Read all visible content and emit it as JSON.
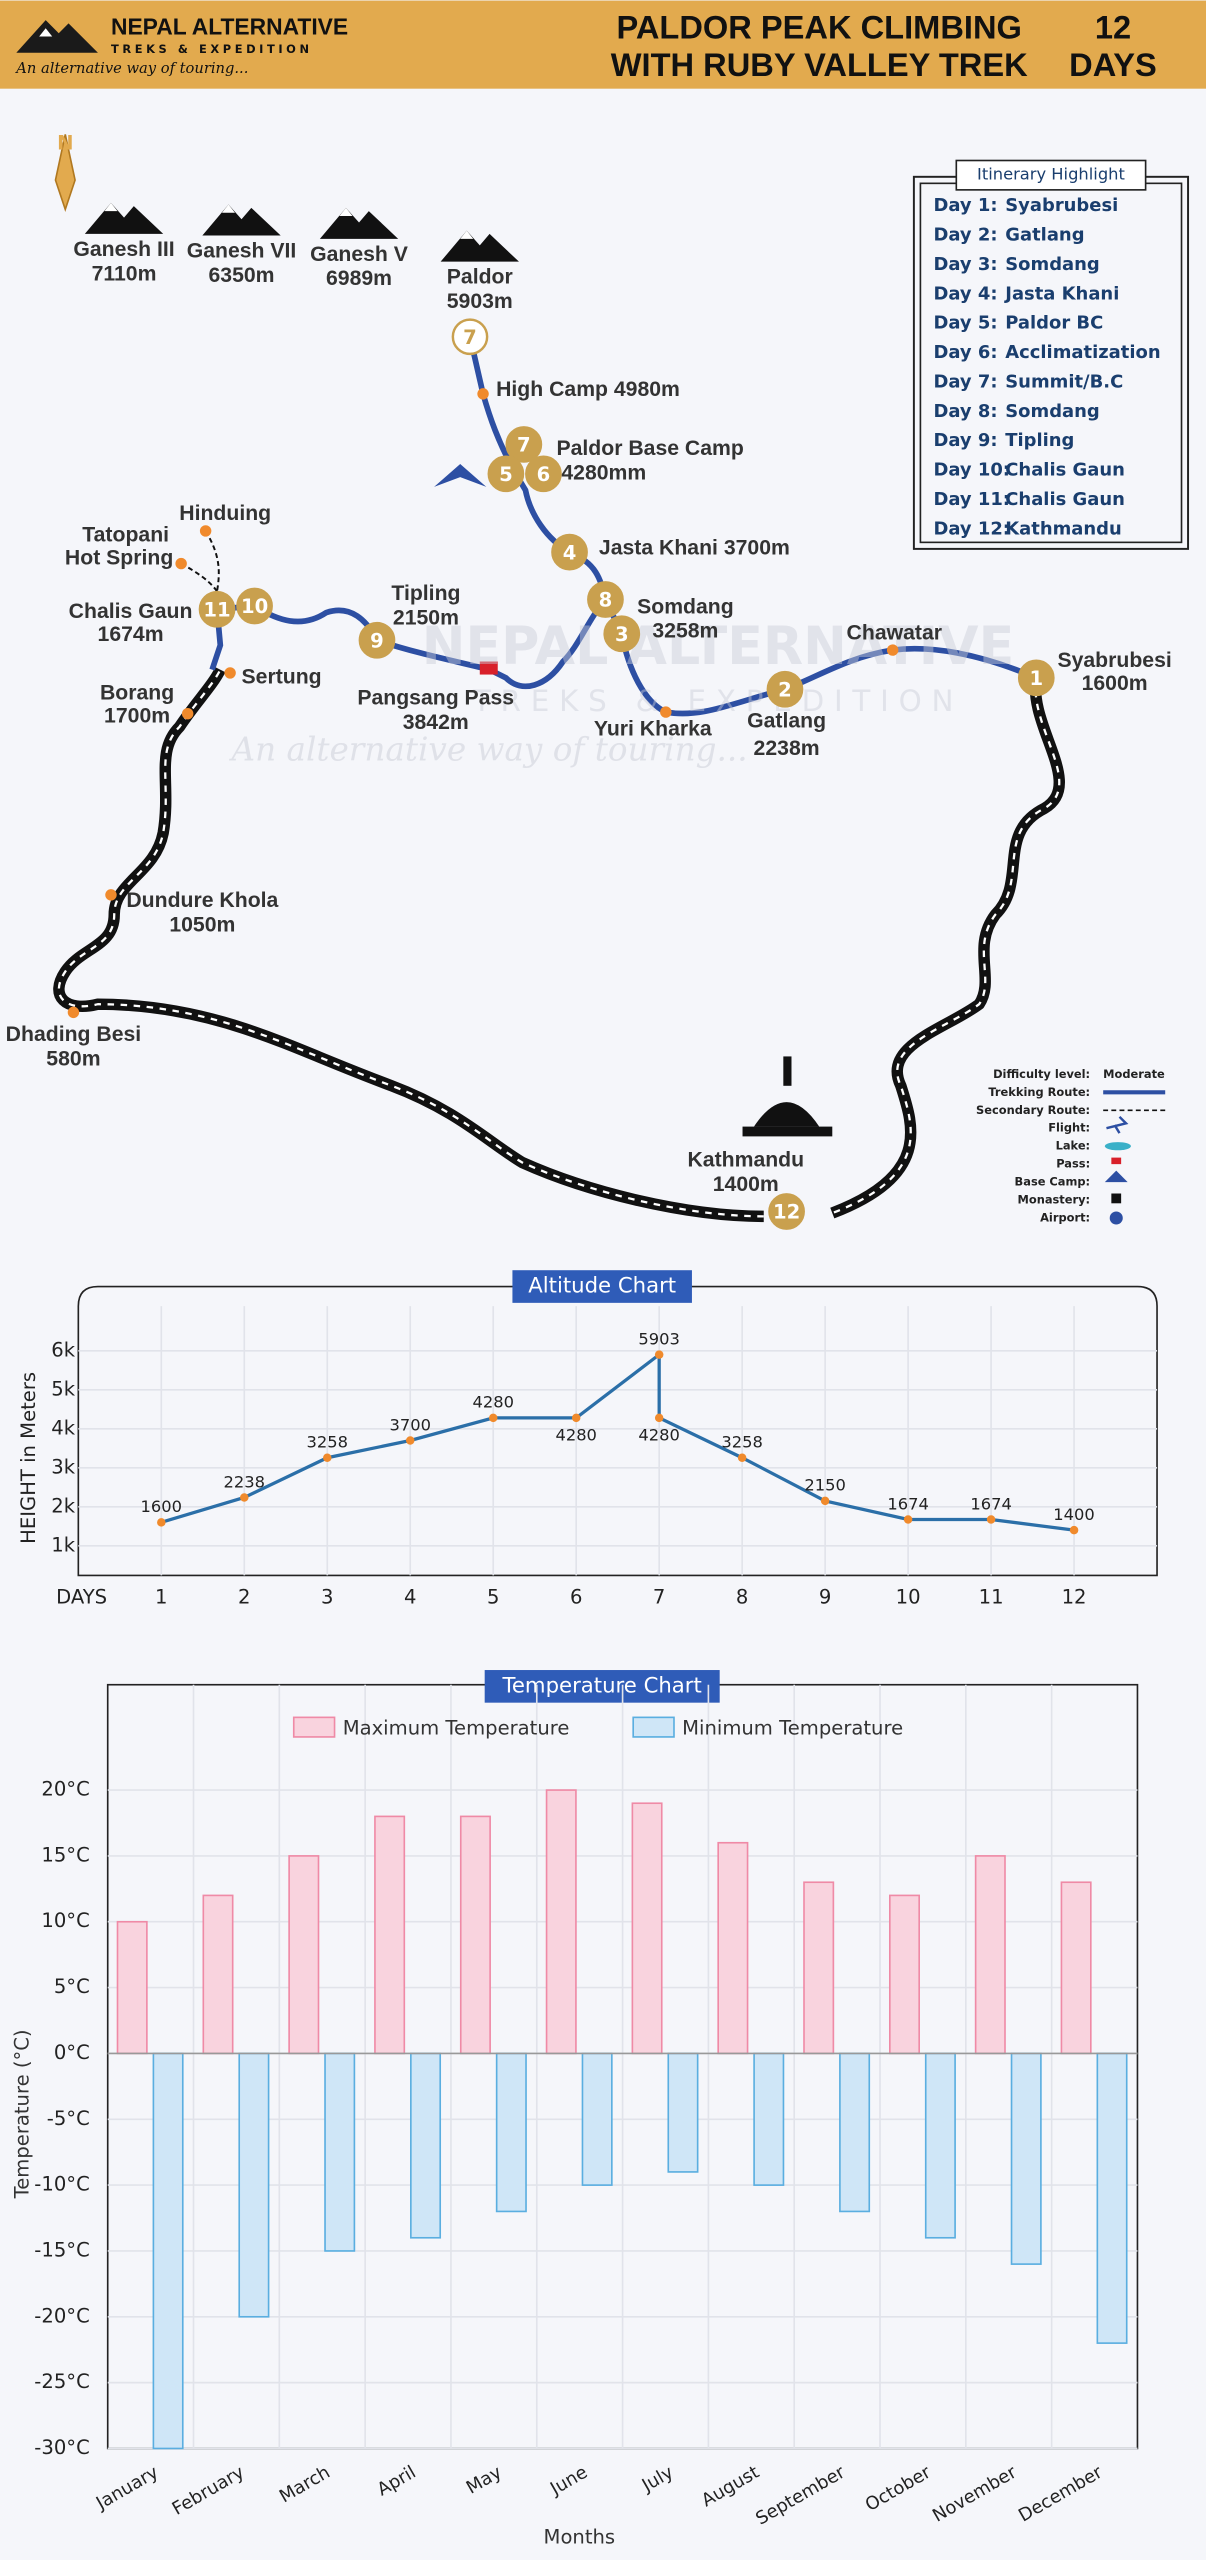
{
  "header": {
    "brand": "NEPAL ALTERNATIVE",
    "brand_sub": "TREKS & EXPEDITION",
    "tagline": "An alternative way of touring...",
    "title_lines": [
      "PALDOR PEAK CLIMBING",
      "WITH RUBY VALLEY TREK"
    ],
    "days_number": "12",
    "days_word": "DAYS"
  },
  "map": {
    "compass": "N",
    "peaks": [
      {
        "name": "Ganesh III",
        "height": "7110m"
      },
      {
        "name": "Ganesh VII",
        "height": "6350m"
      },
      {
        "name": "Ganesh V",
        "height": "6989m"
      },
      {
        "name": "Paldor",
        "height": "5903m"
      }
    ],
    "places": [
      {
        "lines": [
          "High Camp 4980m"
        ]
      },
      {
        "lines": [
          "Paldor Base Camp",
          "4280mm"
        ]
      },
      {
        "lines": [
          "Jasta Khani 3700m"
        ]
      },
      {
        "lines": [
          "Somdang",
          "3258m"
        ]
      },
      {
        "lines": [
          "Tipling",
          "2150m"
        ]
      },
      {
        "lines": [
          "Pangsang Pass",
          "3842m"
        ]
      },
      {
        "lines": [
          "Yuri Kharka"
        ]
      },
      {
        "lines": [
          "Gatlang",
          "2238m"
        ]
      },
      {
        "lines": [
          "Chawatar"
        ]
      },
      {
        "lines": [
          "Syabrubesi",
          "1600m"
        ]
      },
      {
        "lines": [
          "Hinduing"
        ]
      },
      {
        "lines": [
          "Tatopani",
          "Hot Spring"
        ]
      },
      {
        "lines": [
          "Chalis Gaun",
          "1674m"
        ]
      },
      {
        "lines": [
          "Sertung"
        ]
      },
      {
        "lines": [
          "Borang",
          "1700m"
        ]
      },
      {
        "lines": [
          "Dundure Khola",
          "1050m"
        ]
      },
      {
        "lines": [
          "Dhading Besi",
          "580m"
        ]
      },
      {
        "lines": [
          "Kathmandu",
          "1400m"
        ]
      }
    ],
    "day_markers": [
      "7",
      "7",
      "5",
      "6",
      "4",
      "8",
      "3",
      "2",
      "1",
      "9",
      "10",
      "11",
      "12"
    ]
  },
  "legend": {
    "items": [
      {
        "label": "Difficulty level:",
        "value": "Moderate"
      },
      {
        "label": "Trekking Route:"
      },
      {
        "label": "Secondary Route:"
      },
      {
        "label": "Flight:"
      },
      {
        "label": "Lake:"
      },
      {
        "label": "Pass:"
      },
      {
        "label": "Base Camp:"
      },
      {
        "label": "Monastery:"
      },
      {
        "label": "Airport:"
      }
    ]
  },
  "itinerary": {
    "title": "Itinerary Highlight",
    "days": [
      {
        "day": "Day 1:",
        "place": "Syabrubesi"
      },
      {
        "day": "Day 2:",
        "place": "Gatlang"
      },
      {
        "day": "Day 3:",
        "place": "Somdang"
      },
      {
        "day": "Day 4:",
        "place": "Jasta Khani"
      },
      {
        "day": "Day 5:",
        "place": "Paldor BC"
      },
      {
        "day": "Day 6:",
        "place": "Acclimatization"
      },
      {
        "day": "Day 7:",
        "place": "Summit/B.C"
      },
      {
        "day": "Day 8:",
        "place": "Somdang"
      },
      {
        "day": "Day 9:",
        "place": "Tipling"
      },
      {
        "day": "Day 10:",
        "place": "Chalis Gaun"
      },
      {
        "day": "Day 11:",
        "place": "Chalis Gaun"
      },
      {
        "day": "Day 12:",
        "place": "Kathmandu"
      }
    ]
  },
  "chart_data": [
    {
      "type": "line",
      "title": "Altitude Chart",
      "y_label": "HEIGHT in Meters",
      "x_label": "DAYS",
      "x": [
        1,
        2,
        3,
        4,
        5,
        6,
        7,
        7,
        8,
        9,
        10,
        11,
        12
      ],
      "series": [
        {
          "color": "#2b6fa8",
          "values": [
            1600,
            2238,
            3258,
            3700,
            4280,
            4280,
            5903,
            4280,
            3258,
            2150,
            1674,
            1674,
            1400
          ]
        }
      ],
      "marker_color": "#f08a2c",
      "xlim": [
        0,
        13
      ],
      "xticks": [
        1,
        2,
        3,
        4,
        5,
        6,
        7,
        8,
        9,
        10,
        11,
        12
      ],
      "ylim": [
        240,
        7650
      ],
      "yticks": [
        {
          "value": 1000,
          "label": "1k"
        },
        {
          "value": 2000,
          "label": "2k"
        },
        {
          "value": 3000,
          "label": "3k"
        },
        {
          "value": 4000,
          "label": "4k"
        },
        {
          "value": 5000,
          "label": "5k"
        },
        {
          "value": 6000,
          "label": "6k"
        }
      ],
      "grid": true
    },
    {
      "type": "bar",
      "title": "Temperature Chart",
      "y_label": "Temperature (°C)",
      "x_label": "Months",
      "categories": [
        "January",
        "February",
        "March",
        "April",
        "May",
        "June",
        "July",
        "August",
        "September",
        "October",
        "November",
        "December"
      ],
      "series": [
        {
          "name": "Maximum Temperature",
          "color": "#f9d3de",
          "edge": "#ef8aa6",
          "values": [
            10,
            12,
            15,
            18,
            18,
            20,
            19,
            16,
            13,
            12,
            15,
            13
          ]
        },
        {
          "name": "Minimum Temperature",
          "color": "#cfe6f7",
          "edge": "#5aaee0",
          "values": [
            -30,
            -20,
            -15,
            -14,
            -12,
            -10,
            -9,
            -10,
            -12,
            -14,
            -16,
            -22
          ]
        }
      ],
      "ylim": [
        -30,
        28
      ],
      "yticks": [
        {
          "value": -30,
          "label": "-30°C"
        },
        {
          "value": -25,
          "label": "-25°C"
        },
        {
          "value": -20,
          "label": "-20°C"
        },
        {
          "value": -15,
          "label": "-15°C"
        },
        {
          "value": -10,
          "label": "-10°C"
        },
        {
          "value": -5,
          "label": "-5°C"
        },
        {
          "value": 0,
          "label": "0°C"
        },
        {
          "value": 5,
          "label": "5°C"
        },
        {
          "value": 10,
          "label": "10°C"
        },
        {
          "value": 15,
          "label": "15°C"
        },
        {
          "value": 20,
          "label": "20°C"
        }
      ],
      "grid": true
    }
  ]
}
